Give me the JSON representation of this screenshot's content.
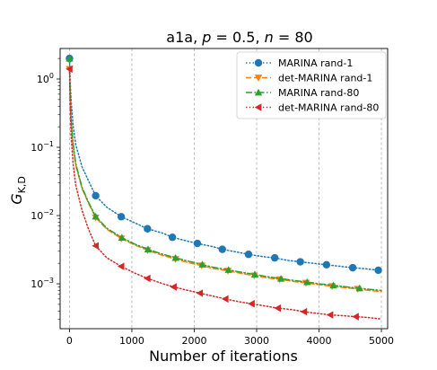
{
  "chart_data": {
    "type": "line",
    "title": {
      "main": "a1a, ",
      "p_sym": "p",
      "p_eq": " = 0.5, ",
      "n_sym": "n",
      "n_eq": " = 80"
    },
    "xlabel": "Number of iterations",
    "ylabel": {
      "main": "G",
      "sub": "K,D"
    },
    "x_ticks": [
      0,
      1000,
      2000,
      3000,
      4000,
      5000
    ],
    "x_tick_labels": [
      "0",
      "1000",
      "2000",
      "3000",
      "4000",
      "5000"
    ],
    "y_ticks": [
      {
        "value": 1,
        "base": "10",
        "exp": "0"
      },
      {
        "value": 0.1,
        "base": "10",
        "exp": "−1"
      },
      {
        "value": 0.01,
        "base": "10",
        "exp": "−2"
      },
      {
        "value": 0.001,
        "base": "10",
        "exp": "−3"
      }
    ],
    "xlim": [
      -150,
      5100
    ],
    "ylim": [
      0.00022,
      2.8
    ],
    "y_scale": "log",
    "grid": "vertical dashed at x ticks",
    "legend_position": "top-right",
    "series": [
      {
        "name": "MARINA rand-1",
        "color": "#1f77b4",
        "linestyle": "dotted",
        "marker": "circle",
        "points": [
          [
            0,
            2.0
          ],
          [
            10,
            1.0
          ],
          [
            25,
            0.5
          ],
          [
            60,
            0.2
          ],
          [
            100,
            0.11
          ],
          [
            200,
            0.052
          ],
          [
            300,
            0.033
          ],
          [
            420,
            0.0195
          ],
          [
            600,
            0.0132
          ],
          [
            830,
            0.0096
          ],
          [
            1050,
            0.0078
          ],
          [
            1250,
            0.0064
          ],
          [
            1500,
            0.0055
          ],
          [
            1650,
            0.0048
          ],
          [
            1900,
            0.0042
          ],
          [
            2050,
            0.0039
          ],
          [
            2300,
            0.0035
          ],
          [
            2450,
            0.0032
          ],
          [
            2700,
            0.0029
          ],
          [
            2870,
            0.0027
          ],
          [
            3100,
            0.0025
          ],
          [
            3290,
            0.0024
          ],
          [
            3500,
            0.0022
          ],
          [
            3700,
            0.0021
          ],
          [
            3900,
            0.002
          ],
          [
            4120,
            0.0019
          ],
          [
            4300,
            0.00182
          ],
          [
            4540,
            0.00172
          ],
          [
            4750,
            0.00166
          ],
          [
            4950,
            0.00158
          ]
        ],
        "marker_x": [
          0,
          420,
          830,
          1250,
          1650,
          2050,
          2450,
          2870,
          3290,
          3700,
          4120,
          4540,
          4950
        ]
      },
      {
        "name": "det-MARINA rand-1",
        "color": "#ff7f0e",
        "linestyle": "dashed",
        "marker": "triangle-down",
        "points": [
          [
            0,
            1.4
          ],
          [
            10,
            0.6
          ],
          [
            25,
            0.25
          ],
          [
            60,
            0.1
          ],
          [
            100,
            0.055
          ],
          [
            200,
            0.025
          ],
          [
            300,
            0.0155
          ],
          [
            420,
            0.0093
          ],
          [
            600,
            0.0063
          ],
          [
            830,
            0.0046
          ],
          [
            1050,
            0.0037
          ],
          [
            1250,
            0.0031
          ],
          [
            1500,
            0.0026
          ],
          [
            1700,
            0.0023
          ],
          [
            1900,
            0.00205
          ],
          [
            2120,
            0.00185
          ],
          [
            2300,
            0.00168
          ],
          [
            2540,
            0.00155
          ],
          [
            2750,
            0.00142
          ],
          [
            2960,
            0.00132
          ],
          [
            3150,
            0.00123
          ],
          [
            3370,
            0.00116
          ],
          [
            3600,
            0.00108
          ],
          [
            3790,
            0.00103
          ],
          [
            4000,
            0.00097
          ],
          [
            4210,
            0.00092
          ],
          [
            4400,
            0.00088
          ],
          [
            4620,
            0.00084
          ],
          [
            4800,
            0.0008
          ],
          [
            5000,
            0.00077
          ]
        ],
        "marker_x": [
          0,
          420,
          830,
          1250,
          1700,
          2120,
          2540,
          2960,
          3370,
          3790,
          4210,
          4620
        ]
      },
      {
        "name": "MARINA rand-80",
        "color": "#2ca02c",
        "linestyle": "dashdot",
        "marker": "triangle-up",
        "points": [
          [
            0,
            2.0
          ],
          [
            10,
            0.7
          ],
          [
            25,
            0.27
          ],
          [
            60,
            0.11
          ],
          [
            100,
            0.058
          ],
          [
            200,
            0.026
          ],
          [
            300,
            0.016
          ],
          [
            420,
            0.0097
          ],
          [
            600,
            0.0065
          ],
          [
            830,
            0.0048
          ],
          [
            1050,
            0.0038
          ],
          [
            1260,
            0.0032
          ],
          [
            1500,
            0.0027
          ],
          [
            1700,
            0.0024
          ],
          [
            1900,
            0.00215
          ],
          [
            2130,
            0.00192
          ],
          [
            2300,
            0.00175
          ],
          [
            2550,
            0.0016
          ],
          [
            2750,
            0.00148
          ],
          [
            2970,
            0.00137
          ],
          [
            3150,
            0.00128
          ],
          [
            3390,
            0.00119
          ],
          [
            3600,
            0.00112
          ],
          [
            3810,
            0.00106
          ],
          [
            4000,
            0.001
          ],
          [
            4230,
            0.00095
          ],
          [
            4450,
            0.0009
          ],
          [
            4650,
            0.00086
          ],
          [
            4800,
            0.00083
          ],
          [
            5000,
            0.0008
          ]
        ],
        "marker_x": [
          0,
          420,
          840,
          1260,
          1700,
          2130,
          2550,
          2970,
          3390,
          3810,
          4230,
          4650
        ]
      },
      {
        "name": "det-MARINA rand-80",
        "color": "#d62728",
        "linestyle": "dotted",
        "marker": "triangle-left",
        "points": [
          [
            0,
            1.4
          ],
          [
            10,
            0.45
          ],
          [
            25,
            0.15
          ],
          [
            60,
            0.055
          ],
          [
            100,
            0.028
          ],
          [
            200,
            0.012
          ],
          [
            300,
            0.0065
          ],
          [
            420,
            0.0036
          ],
          [
            600,
            0.0024
          ],
          [
            830,
            0.0018
          ],
          [
            1050,
            0.00143
          ],
          [
            1250,
            0.0012
          ],
          [
            1500,
            0.001
          ],
          [
            1670,
            0.0009
          ],
          [
            1900,
            0.0008
          ],
          [
            2090,
            0.00073
          ],
          [
            2300,
            0.00066
          ],
          [
            2500,
            0.0006
          ],
          [
            2700,
            0.00055
          ],
          [
            2920,
            0.00051
          ],
          [
            3100,
            0.00048
          ],
          [
            3340,
            0.00044
          ],
          [
            3550,
            0.00042
          ],
          [
            3760,
            0.00039
          ],
          [
            3950,
            0.00037
          ],
          [
            4180,
            0.00035
          ],
          [
            4400,
            0.00034
          ],
          [
            4590,
            0.00033
          ],
          [
            4800,
            0.00032
          ],
          [
            5000,
            0.000305
          ]
        ],
        "marker_x": [
          0,
          420,
          830,
          1250,
          1670,
          2090,
          2500,
          2920,
          3340,
          3760,
          4180,
          4590
        ]
      }
    ]
  }
}
